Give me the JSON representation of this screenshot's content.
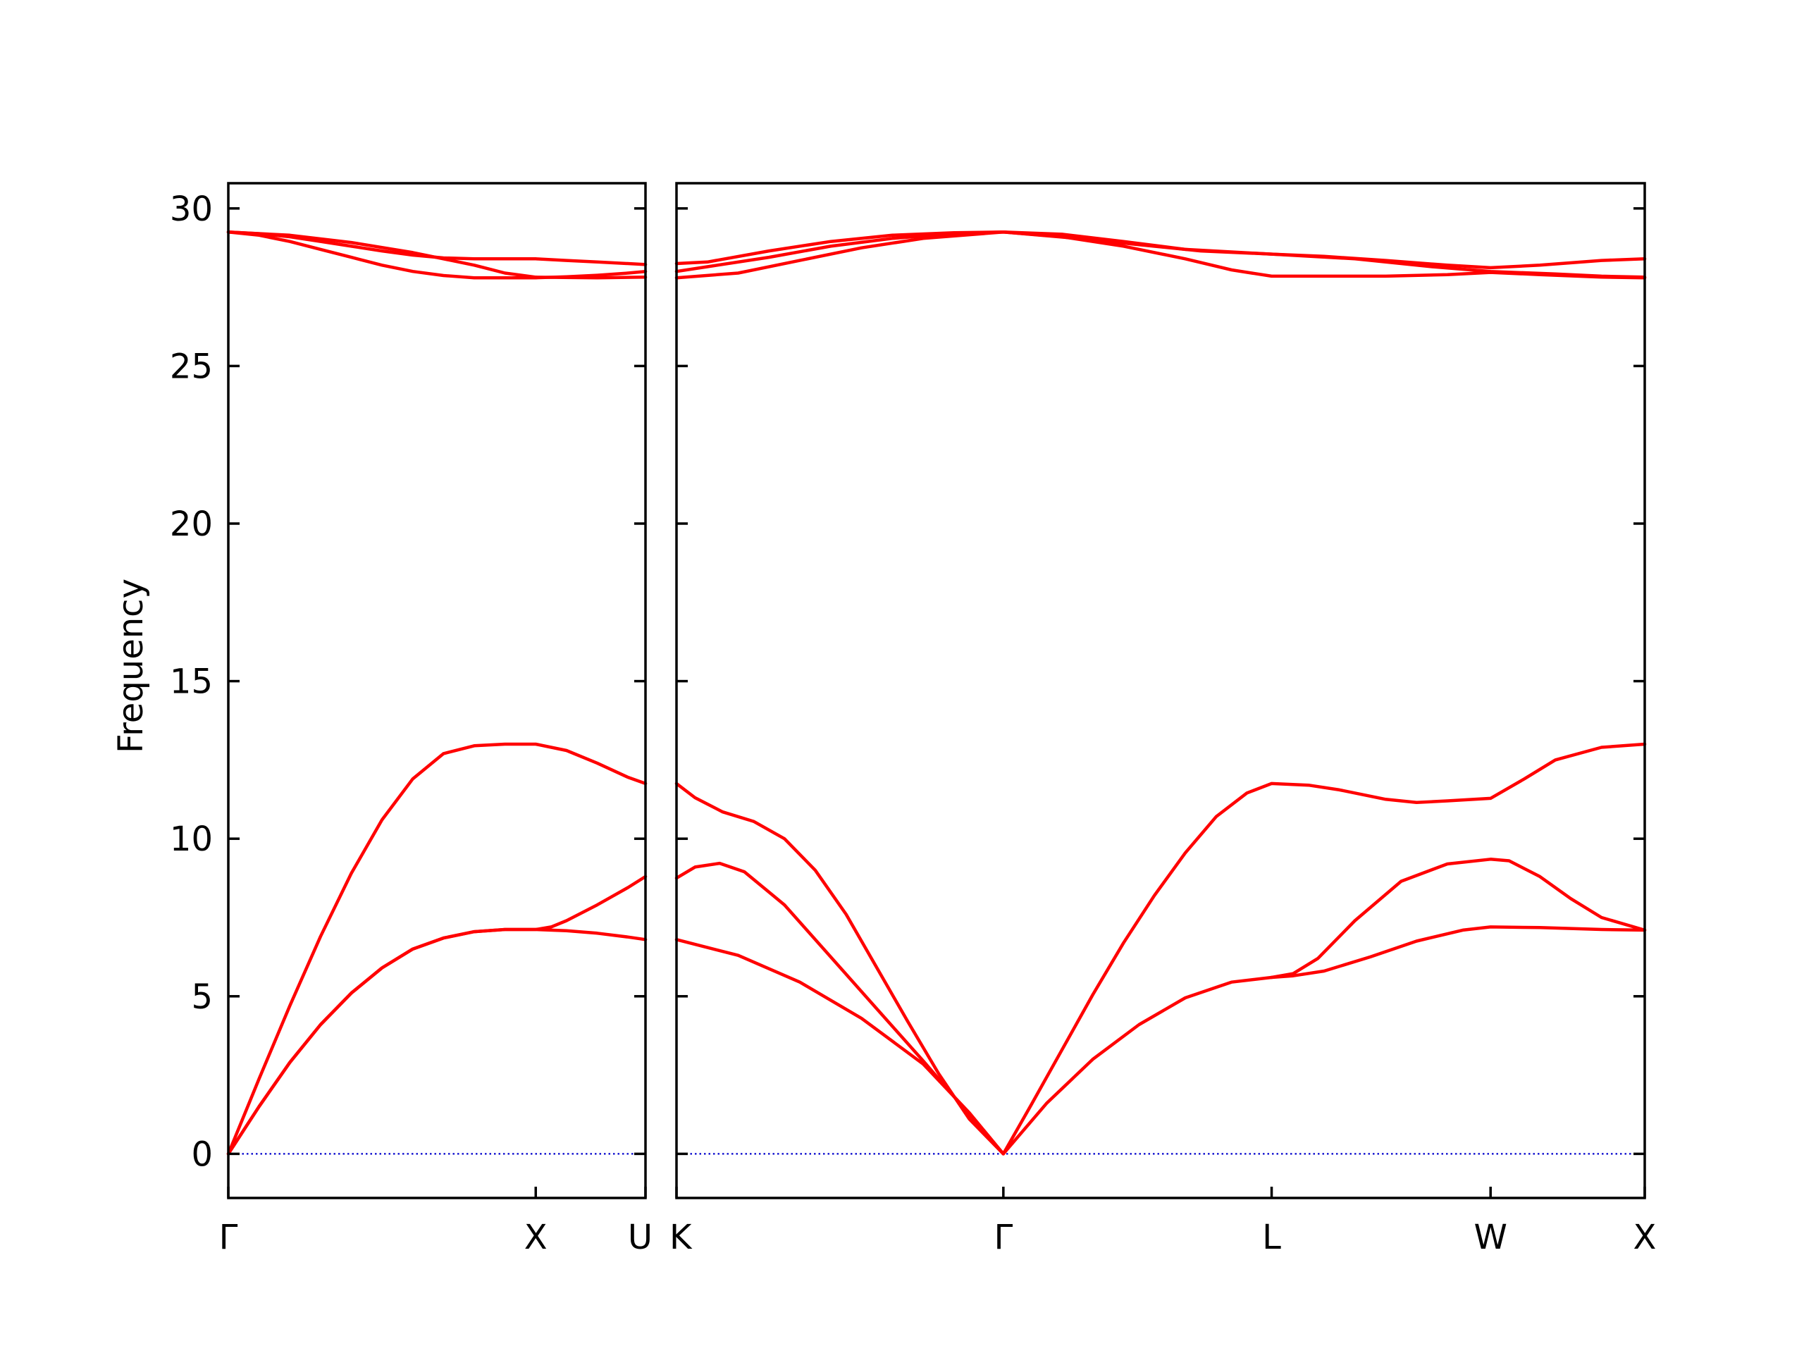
{
  "chart_data": {
    "type": "line",
    "title": "",
    "ylabel": "Frequency",
    "ylim": [
      -1.4,
      30.8
    ],
    "yticks": [
      0,
      5,
      10,
      15,
      20,
      25,
      30
    ],
    "grid": false,
    "legend": "none",
    "colors": {
      "bands": "#ff0000",
      "zero_line": "#0000cc"
    },
    "panels": [
      {
        "name": "Γ-X-U",
        "xlim": [
          0,
          1.357
        ],
        "ticks": [
          {
            "x": 0,
            "label": "Γ"
          },
          {
            "x": 1.0,
            "label": "X"
          },
          {
            "x": 1.357,
            "label": "U"
          }
        ],
        "series": [
          {
            "values": [
              [
                0,
                0
              ],
              [
                0.1,
                2.38
              ],
              [
                0.2,
                4.7
              ],
              [
                0.3,
                6.9
              ],
              [
                0.4,
                8.9
              ],
              [
                0.5,
                10.6
              ],
              [
                0.6,
                11.9
              ],
              [
                0.7,
                12.7
              ],
              [
                0.8,
                12.95
              ],
              [
                0.9,
                13.0
              ],
              [
                1.0,
                13.0
              ],
              [
                1.1,
                12.8
              ],
              [
                1.2,
                12.4
              ],
              [
                1.3,
                11.95
              ],
              [
                1.357,
                11.75
              ]
            ]
          },
          {
            "values": [
              [
                0,
                0
              ],
              [
                0.1,
                1.5
              ],
              [
                0.2,
                2.9
              ],
              [
                0.3,
                4.1
              ],
              [
                0.4,
                5.1
              ],
              [
                0.5,
                5.9
              ],
              [
                0.6,
                6.5
              ],
              [
                0.7,
                6.85
              ],
              [
                0.8,
                7.05
              ],
              [
                0.9,
                7.12
              ],
              [
                1.0,
                7.12
              ],
              [
                1.05,
                7.2
              ],
              [
                1.1,
                7.4
              ],
              [
                1.2,
                7.9
              ],
              [
                1.3,
                8.45
              ],
              [
                1.357,
                8.8
              ]
            ]
          },
          {
            "values": [
              [
                0,
                0
              ],
              [
                0.1,
                1.5
              ],
              [
                0.2,
                2.9
              ],
              [
                0.3,
                4.1
              ],
              [
                0.4,
                5.1
              ],
              [
                0.5,
                5.9
              ],
              [
                0.6,
                6.5
              ],
              [
                0.7,
                6.85
              ],
              [
                0.8,
                7.05
              ],
              [
                0.9,
                7.12
              ],
              [
                1.0,
                7.12
              ],
              [
                1.1,
                7.08
              ],
              [
                1.2,
                7.0
              ],
              [
                1.3,
                6.88
              ],
              [
                1.357,
                6.8
              ]
            ]
          },
          {
            "values": [
              [
                0,
                29.25
              ],
              [
                0.1,
                29.2
              ],
              [
                0.2,
                29.1
              ],
              [
                0.3,
                28.95
              ],
              [
                0.4,
                28.8
              ],
              [
                0.5,
                28.65
              ],
              [
                0.6,
                28.52
              ],
              [
                0.7,
                28.43
              ],
              [
                0.8,
                28.4
              ],
              [
                0.9,
                28.4
              ],
              [
                1.0,
                28.4
              ],
              [
                1.1,
                28.35
              ],
              [
                1.2,
                28.3
              ],
              [
                1.3,
                28.25
              ],
              [
                1.357,
                28.22
              ]
            ]
          },
          {
            "values": [
              [
                0,
                29.25
              ],
              [
                0.1,
                29.15
              ],
              [
                0.2,
                28.95
              ],
              [
                0.3,
                28.7
              ],
              [
                0.4,
                28.45
              ],
              [
                0.5,
                28.2
              ],
              [
                0.6,
                28.0
              ],
              [
                0.7,
                27.87
              ],
              [
                0.8,
                27.8
              ],
              [
                0.9,
                27.8
              ],
              [
                1.0,
                27.8
              ],
              [
                1.1,
                27.83
              ],
              [
                1.2,
                27.88
              ],
              [
                1.3,
                27.95
              ],
              [
                1.357,
                28.0
              ]
            ]
          },
          {
            "values": [
              [
                0,
                29.25
              ],
              [
                0.2,
                29.15
              ],
              [
                0.4,
                28.92
              ],
              [
                0.6,
                28.6
              ],
              [
                0.8,
                28.2
              ],
              [
                0.9,
                27.95
              ],
              [
                1.0,
                27.82
              ],
              [
                1.2,
                27.8
              ],
              [
                1.357,
                27.82
              ]
            ]
          }
        ],
        "zero_line": [
          0,
          1.357
        ]
      },
      {
        "name": "K-Γ-L-W-X",
        "xlim": [
          0,
          3.14
        ],
        "ticks": [
          {
            "x": 0,
            "label": "K"
          },
          {
            "x": 1.06,
            "label": "Γ"
          },
          {
            "x": 1.93,
            "label": "L"
          },
          {
            "x": 2.64,
            "label": "W"
          },
          {
            "x": 3.14,
            "label": "X"
          }
        ],
        "series": [
          {
            "values": [
              [
                0,
                11.75
              ],
              [
                0.06,
                11.3
              ],
              [
                0.15,
                10.85
              ],
              [
                0.25,
                10.55
              ],
              [
                0.35,
                10.0
              ],
              [
                0.45,
                9.0
              ],
              [
                0.55,
                7.6
              ],
              [
                0.65,
                5.9
              ],
              [
                0.75,
                4.2
              ],
              [
                0.85,
                2.55
              ],
              [
                0.95,
                1.1
              ],
              [
                1.06,
                0
              ],
              [
                1.15,
                1.55
              ],
              [
                1.25,
                3.3
              ],
              [
                1.35,
                5.05
              ],
              [
                1.45,
                6.7
              ],
              [
                1.55,
                8.2
              ],
              [
                1.65,
                9.55
              ],
              [
                1.75,
                10.7
              ],
              [
                1.85,
                11.45
              ],
              [
                1.93,
                11.75
              ],
              [
                2.05,
                11.7
              ],
              [
                2.15,
                11.55
              ],
              [
                2.3,
                11.25
              ],
              [
                2.4,
                11.15
              ],
              [
                2.5,
                11.2
              ],
              [
                2.64,
                11.28
              ],
              [
                2.75,
                11.9
              ],
              [
                2.85,
                12.5
              ],
              [
                3.0,
                12.9
              ],
              [
                3.14,
                13.0
              ]
            ]
          },
          {
            "values": [
              [
                0,
                8.75
              ],
              [
                0.06,
                9.1
              ],
              [
                0.14,
                9.22
              ],
              [
                0.22,
                8.95
              ],
              [
                0.35,
                7.9
              ],
              [
                0.5,
                6.25
              ],
              [
                0.65,
                4.6
              ],
              [
                0.8,
                2.95
              ],
              [
                0.95,
                1.25
              ],
              [
                1.06,
                0
              ]
            ]
          },
          {
            "values": [
              [
                0,
                6.8
              ],
              [
                0.2,
                6.3
              ],
              [
                0.4,
                5.45
              ],
              [
                0.6,
                4.3
              ],
              [
                0.8,
                2.85
              ],
              [
                0.95,
                1.3
              ],
              [
                1.06,
                0
              ],
              [
                1.2,
                1.6
              ],
              [
                1.35,
                3.0
              ],
              [
                1.5,
                4.1
              ],
              [
                1.65,
                4.95
              ],
              [
                1.8,
                5.45
              ],
              [
                1.93,
                5.6
              ],
              [
                2.0,
                5.65
              ],
              [
                2.1,
                5.8
              ],
              [
                2.25,
                6.25
              ],
              [
                2.4,
                6.75
              ],
              [
                2.55,
                7.1
              ],
              [
                2.64,
                7.2
              ],
              [
                2.8,
                7.18
              ],
              [
                3.0,
                7.12
              ],
              [
                3.14,
                7.1
              ]
            ]
          },
          {
            "values": [
              [
                1.93,
                5.6
              ],
              [
                2.0,
                5.72
              ],
              [
                2.08,
                6.2
              ],
              [
                2.2,
                7.4
              ],
              [
                2.35,
                8.65
              ],
              [
                2.5,
                9.2
              ],
              [
                2.64,
                9.35
              ],
              [
                2.7,
                9.3
              ],
              [
                2.8,
                8.8
              ],
              [
                2.9,
                8.1
              ],
              [
                3.0,
                7.5
              ],
              [
                3.14,
                7.1
              ]
            ]
          },
          {
            "values": [
              [
                0,
                28.25
              ],
              [
                0.1,
                28.3
              ],
              [
                0.3,
                28.65
              ],
              [
                0.5,
                28.95
              ],
              [
                0.7,
                29.15
              ],
              [
                0.9,
                29.23
              ],
              [
                1.06,
                29.25
              ],
              [
                1.25,
                29.18
              ],
              [
                1.45,
                28.95
              ],
              [
                1.65,
                28.7
              ],
              [
                1.93,
                28.55
              ],
              [
                2.1,
                28.48
              ],
              [
                2.3,
                28.35
              ],
              [
                2.5,
                28.2
              ],
              [
                2.64,
                28.12
              ],
              [
                2.8,
                28.2
              ],
              [
                3.0,
                28.35
              ],
              [
                3.14,
                28.4
              ]
            ]
          },
          {
            "values": [
              [
                0,
                28.0
              ],
              [
                0.1,
                28.15
              ],
              [
                0.3,
                28.45
              ],
              [
                0.5,
                28.8
              ],
              [
                0.7,
                29.05
              ],
              [
                0.9,
                29.2
              ],
              [
                1.06,
                29.25
              ],
              [
                1.25,
                29.1
              ],
              [
                1.45,
                28.8
              ],
              [
                1.65,
                28.4
              ],
              [
                1.8,
                28.05
              ],
              [
                1.93,
                27.85
              ],
              [
                2.3,
                27.85
              ],
              [
                2.5,
                27.9
              ],
              [
                2.64,
                27.97
              ],
              [
                2.8,
                27.9
              ],
              [
                3.0,
                27.82
              ],
              [
                3.14,
                27.8
              ]
            ]
          },
          {
            "values": [
              [
                0,
                27.8
              ],
              [
                0.2,
                27.95
              ],
              [
                0.4,
                28.35
              ],
              [
                0.6,
                28.75
              ],
              [
                0.8,
                29.05
              ],
              [
                1.06,
                29.25
              ],
              [
                1.3,
                29.05
              ],
              [
                1.5,
                28.85
              ],
              [
                1.7,
                28.65
              ],
              [
                1.93,
                28.55
              ],
              [
                2.2,
                28.4
              ],
              [
                2.45,
                28.15
              ],
              [
                2.64,
                28.0
              ],
              [
                2.85,
                27.92
              ],
              [
                3.0,
                27.85
              ],
              [
                3.14,
                27.82
              ]
            ]
          }
        ],
        "zero_line": [
          0,
          3.14
        ]
      }
    ]
  }
}
